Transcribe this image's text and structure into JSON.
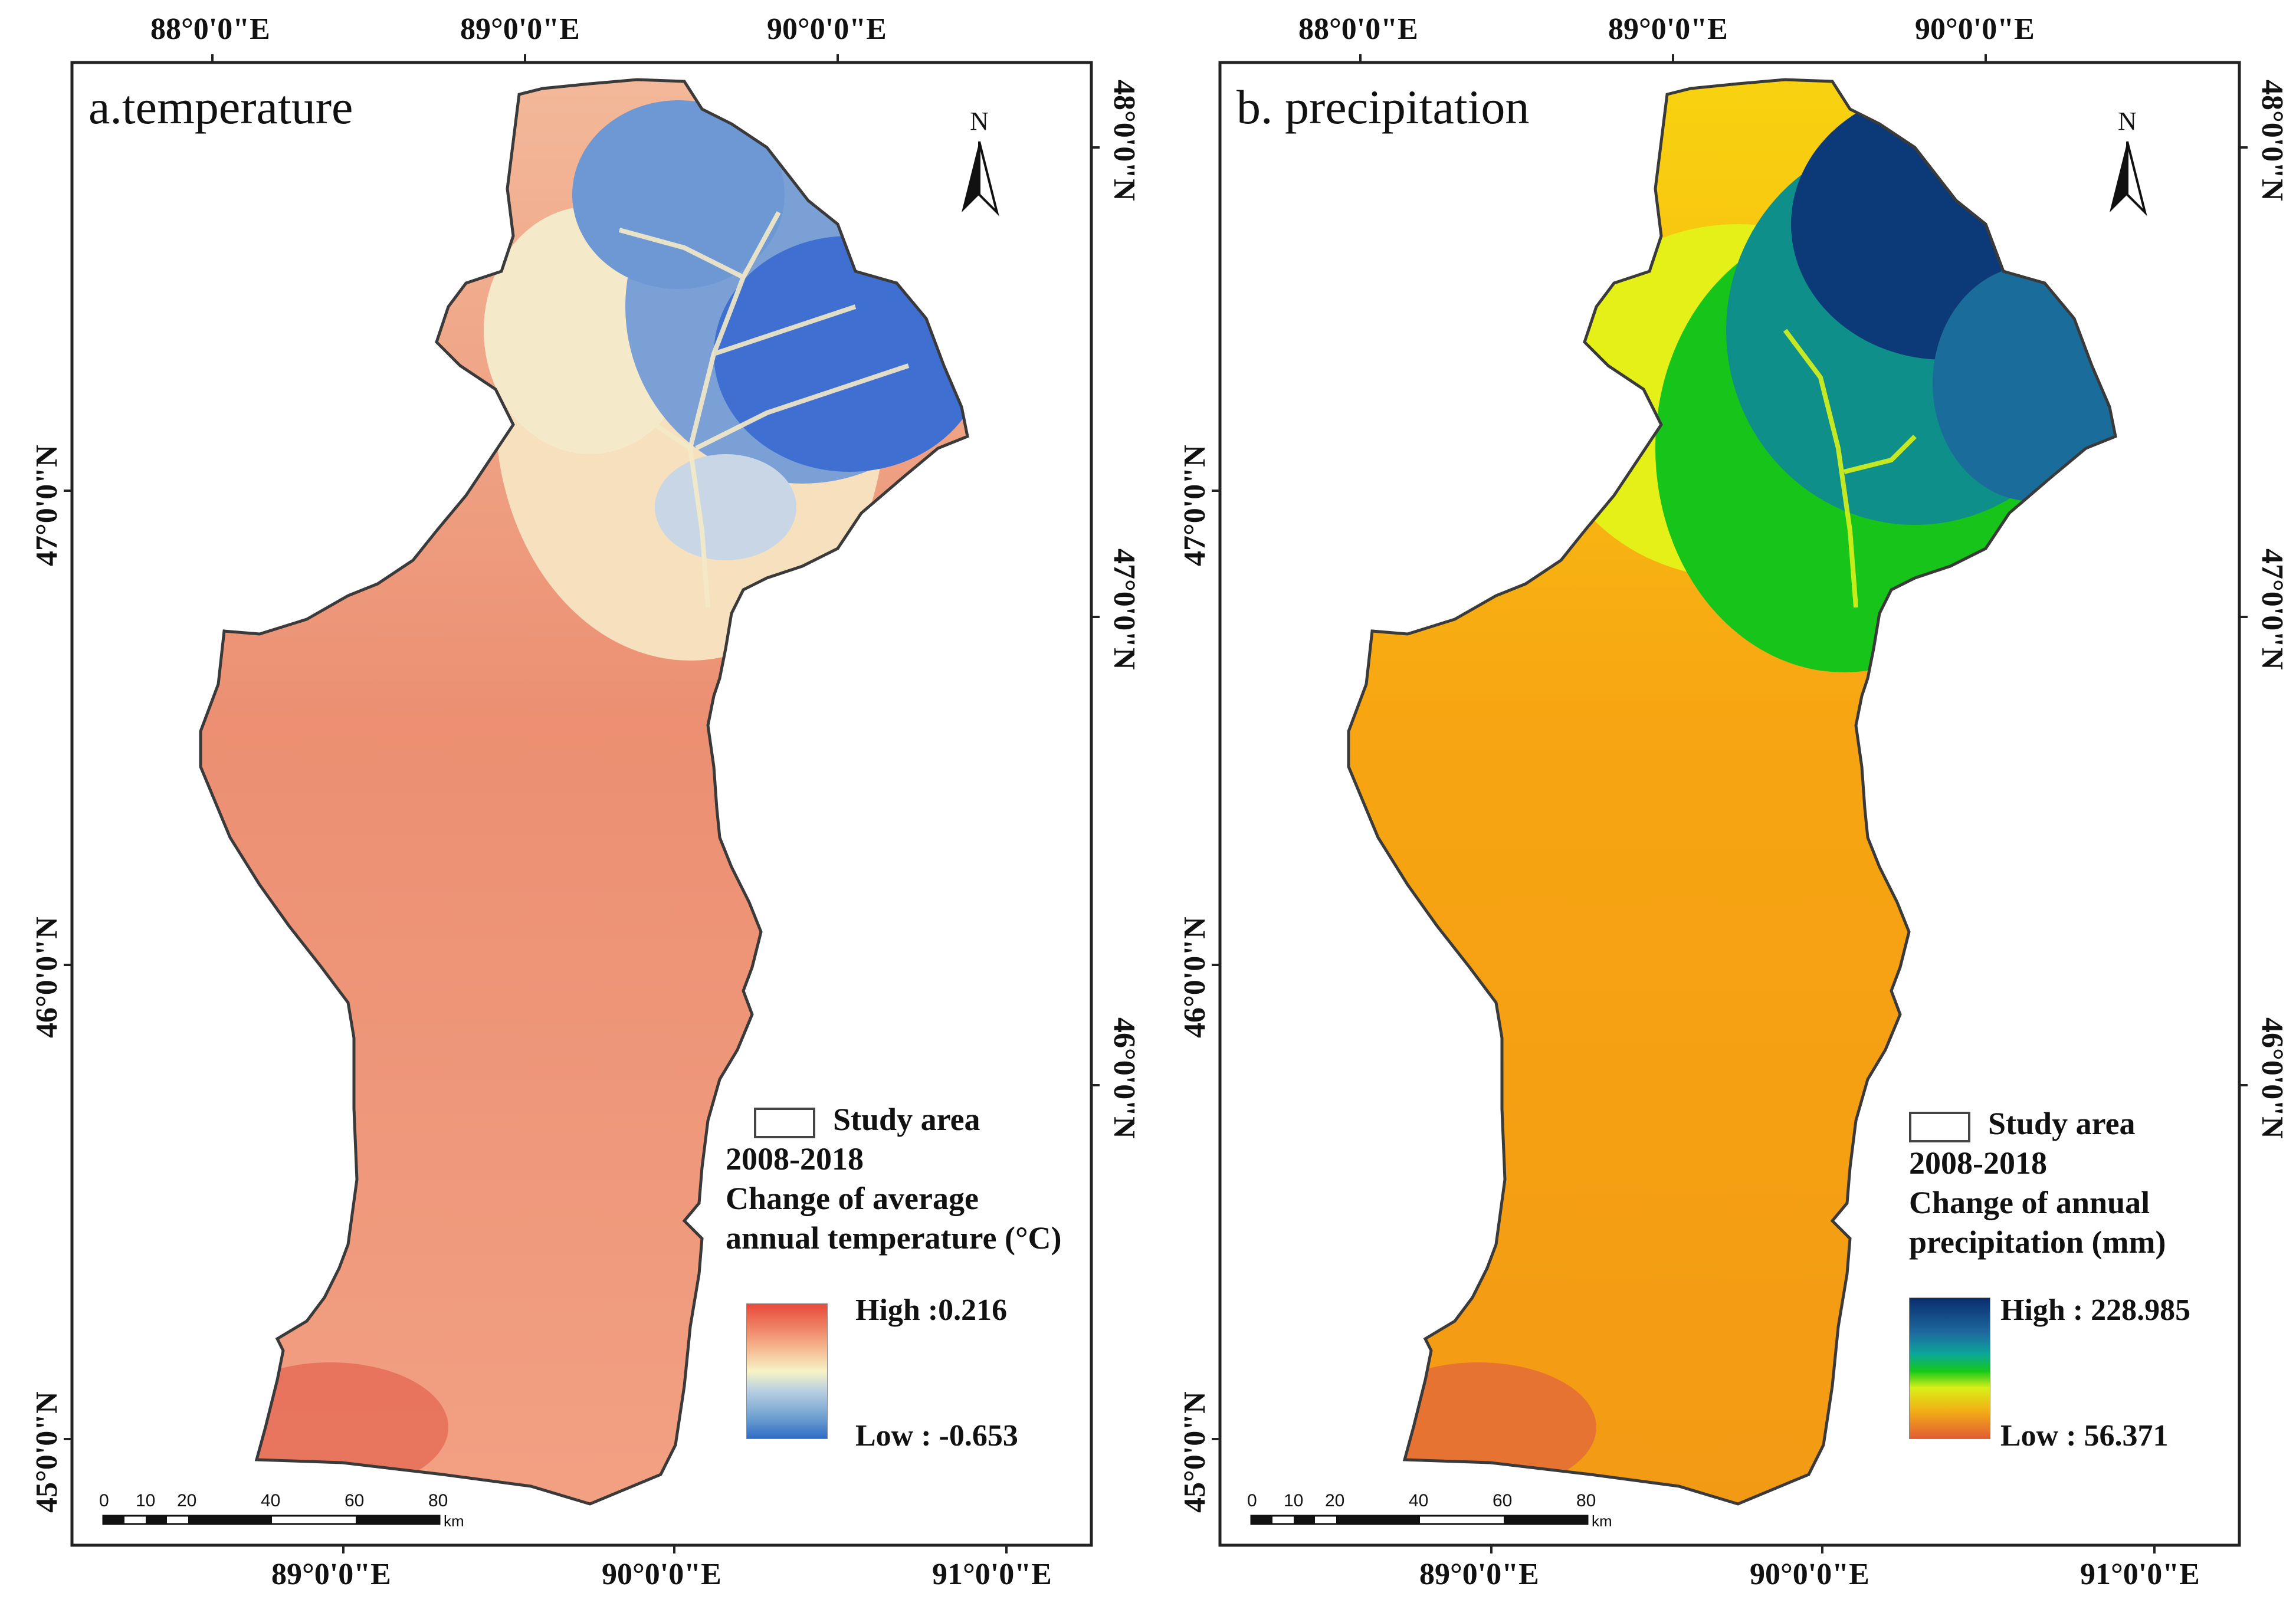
{
  "panels": [
    {
      "id": "a",
      "title": "a.temperature",
      "north_label": "N",
      "top_lon_labels": [
        "88°0'0\"E",
        "89°0'0\"E",
        "90°0'0\"E"
      ],
      "bottom_lon_labels": [
        "89°0'0\"E",
        "90°0'0\"E",
        "91°0'0\"E"
      ],
      "left_lat_labels": [
        "47°0'0\"N",
        "46°0'0\"N",
        "45°0'0\"N"
      ],
      "right_lat_labels": [
        "48°0'0\"N",
        "47°0'0\"N",
        "46°0'0\"N"
      ],
      "legend": {
        "study_area": "Study area",
        "period": "2008-2018",
        "desc_line1": "Change of average",
        "desc_line2": "annual temperature (°C)",
        "high_label": "High :0.216",
        "low_label": "Low : -0.653",
        "high_value": 0.216,
        "low_value": -0.653,
        "ramp_colors": [
          "#e8493a",
          "#f08a6a",
          "#f6c9a0",
          "#f7f3c6",
          "#b8cfe2",
          "#6c9ecf",
          "#2f6cc6"
        ]
      },
      "scale": {
        "ticks": [
          "0",
          "10",
          "20",
          "40",
          "60",
          "80"
        ],
        "unit": "km"
      },
      "colors": {
        "low_area": "#f0896d",
        "mid_area": "#f7e5bd",
        "high_area": "#3f6fd1",
        "outline": "#3a3a3a"
      }
    },
    {
      "id": "b",
      "title": "b. precipitation",
      "north_label": "N",
      "top_lon_labels": [
        "88°0'0\"E",
        "89°0'0\"E",
        "90°0'0\"E"
      ],
      "bottom_lon_labels": [
        "89°0'0\"E",
        "90°0'0\"E",
        "91°0'0\"E"
      ],
      "left_lat_labels": [
        "47°0'0\"N",
        "46°0'0\"N",
        "45°0'0\"N"
      ],
      "right_lat_labels": [
        "48°0'0\"N",
        "47°0'0\"N",
        "46°0'0\"N"
      ],
      "legend": {
        "study_area": "Study area",
        "period": "2008-2018",
        "desc_line1": "Change of annual",
        "desc_line2": "precipitation (mm)",
        "high_label": "High : 228.985",
        "low_label": "Low : 56.371",
        "high_value": 228.985,
        "low_value": 56.371,
        "ramp_colors": [
          "#0a2d6e",
          "#1e6aa0",
          "#0aa89a",
          "#15c81a",
          "#d8f018",
          "#f2b015",
          "#e25c34"
        ]
      },
      "scale": {
        "ticks": [
          "0",
          "10",
          "20",
          "40",
          "60",
          "80"
        ],
        "unit": "km"
      },
      "colors": {
        "low_area": "#f6a30a",
        "mid_area": "#17c41a",
        "high_area": "#0c3a78",
        "outline": "#3a3a3a"
      }
    }
  ]
}
